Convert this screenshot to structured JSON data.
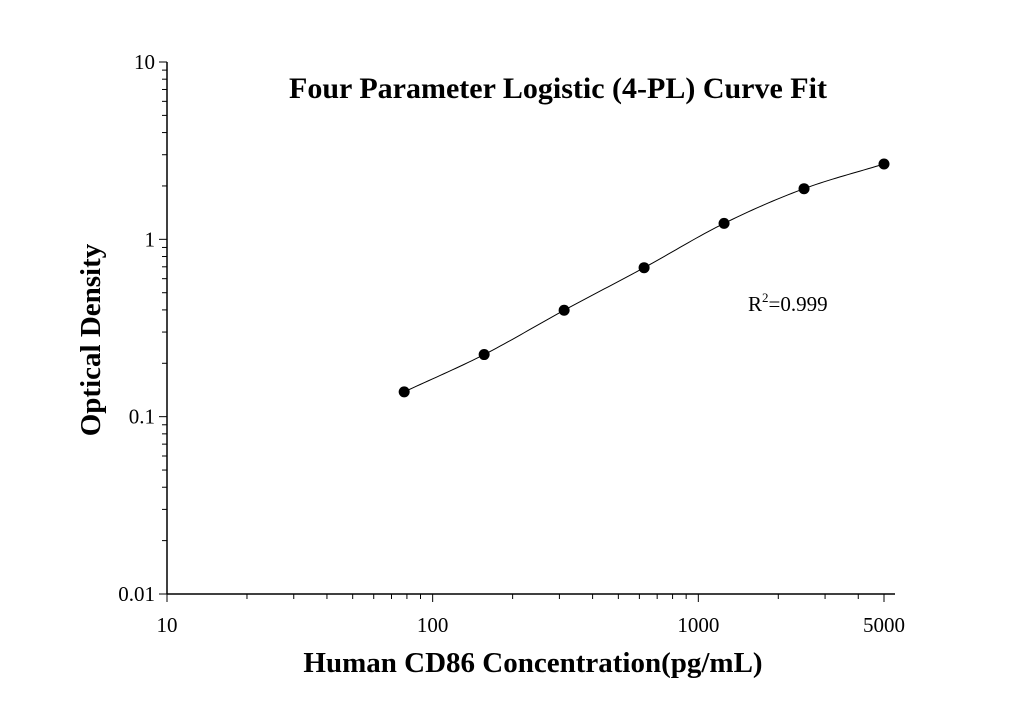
{
  "chart_data": {
    "type": "scatter",
    "title": "Four Parameter Logistic (4-PL) Curve Fit",
    "xlabel": "Human CD86 Concentration(pg/mL)",
    "ylabel": "Optical Density",
    "x_scale": "log",
    "y_scale": "log",
    "xlim": [
      10,
      5500
    ],
    "ylim": [
      0.01,
      10
    ],
    "x_ticks": [
      {
        "value": 10,
        "label": "10"
      },
      {
        "value": 100,
        "label": "100"
      },
      {
        "value": 1000,
        "label": "1000"
      },
      {
        "value": 5000,
        "label": "5000"
      }
    ],
    "y_ticks": [
      {
        "value": 0.01,
        "label": "0.01"
      },
      {
        "value": 0.1,
        "label": "0.1"
      },
      {
        "value": 1,
        "label": "1"
      },
      {
        "value": 10,
        "label": "10"
      }
    ],
    "grid": false,
    "legend": "none",
    "series": [
      {
        "points": [
          {
            "x": 78.125,
            "y": 0.138
          },
          {
            "x": 156.25,
            "y": 0.224
          },
          {
            "x": 312.5,
            "y": 0.398
          },
          {
            "x": 625,
            "y": 0.692
          },
          {
            "x": 1250,
            "y": 1.23
          },
          {
            "x": 2500,
            "y": 1.93
          },
          {
            "x": 5000,
            "y": 2.66
          }
        ],
        "color": "#000000"
      }
    ],
    "annotation": {
      "r_label": "R",
      "r_sup": "2",
      "r_value": "=0.999"
    }
  }
}
